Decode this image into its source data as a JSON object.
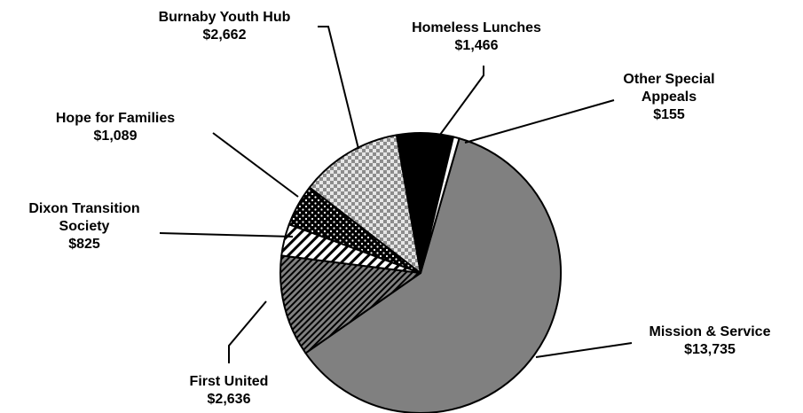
{
  "chart_data": {
    "type": "pie",
    "title": "",
    "slices": [
      {
        "label": "Mission & Service",
        "value": 13735,
        "display": "$13,735",
        "fill": "#808080",
        "pattern": "solid"
      },
      {
        "label": "First United",
        "value": 2636,
        "display": "$2,636",
        "fill": "#808080",
        "pattern": "diagonal-stripes"
      },
      {
        "label": "Dixon Transition Society",
        "label_lines": [
          "Dixon Transition",
          "Society"
        ],
        "value": 825,
        "display": "$825",
        "fill": "#ffffff",
        "pattern": "wide-diagonal-stripes"
      },
      {
        "label": "Hope for Families",
        "value": 1089,
        "display": "$1,089",
        "fill": "#000000",
        "pattern": "white-dots"
      },
      {
        "label": "Burnaby Youth Hub",
        "value": 2662,
        "display": "$2,662",
        "fill": "#c0c0c0",
        "pattern": "checkerboard"
      },
      {
        "label": "Homeless Lunches",
        "value": 1466,
        "display": "$1,466",
        "fill": "#000000",
        "pattern": "solid"
      },
      {
        "label": "Other Special Appeals",
        "label_lines": [
          "Other Special",
          "Appeals"
        ],
        "value": 155,
        "display": "$155",
        "fill": "#ffffff",
        "pattern": "solid"
      }
    ],
    "start_angle_deg": 16,
    "direction": "clockwise",
    "legend": "none",
    "data_labels": "outside with leader lines"
  }
}
